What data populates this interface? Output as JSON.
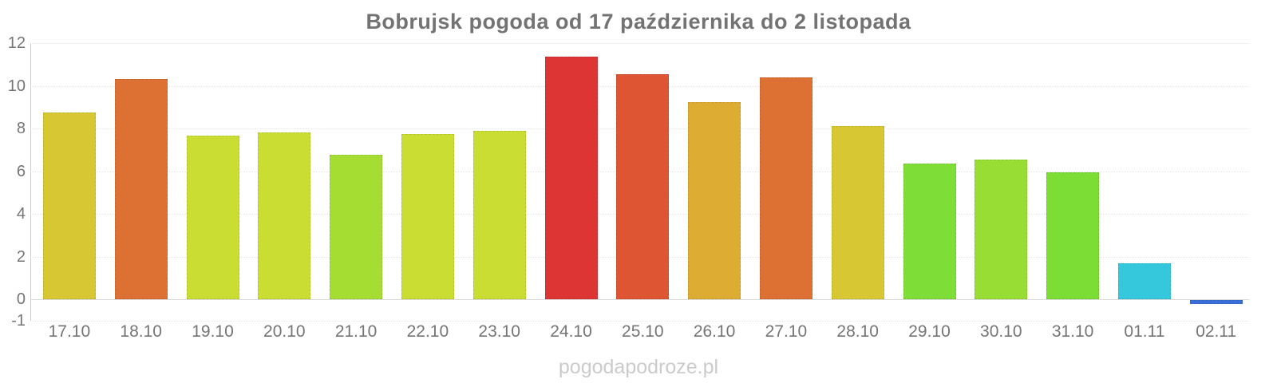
{
  "title": "Bobrujsk pogoda od 17 października do 2 listopada",
  "watermark": "pogodapodroze.pl",
  "chart_data": {
    "type": "bar",
    "title": "Bobrujsk pogoda od 17 października do 2 listopada",
    "categories": [
      "17.10",
      "18.10",
      "19.10",
      "20.10",
      "21.10",
      "22.10",
      "23.10",
      "24.10",
      "25.10",
      "26.10",
      "27.10",
      "28.10",
      "29.10",
      "30.10",
      "31.10",
      "01.11",
      "02.11"
    ],
    "values": [
      8.75,
      10.3,
      7.65,
      7.8,
      6.75,
      7.75,
      7.9,
      11.35,
      10.55,
      9.25,
      10.4,
      8.1,
      6.35,
      6.55,
      5.95,
      1.7,
      -0.2
    ],
    "bar_colors": [
      "#d6c733",
      "#dd7133",
      "#c9dd33",
      "#c9dd33",
      "#a6dd33",
      "#c9dd33",
      "#c9dd33",
      "#dd3434",
      "#dd5533",
      "#ddad33",
      "#dd7133",
      "#d6c733",
      "#7edd36",
      "#98dd34",
      "#7cdd35",
      "#35c8dd",
      "#3a6fd9"
    ],
    "xlabel": "",
    "ylabel": "",
    "yticks": [
      12,
      10,
      8,
      6,
      4,
      2,
      0,
      -1
    ],
    "ylim": [
      -1,
      12
    ],
    "grid": "horizontal-dotted",
    "legend": "none",
    "axis_color": "#cccccc",
    "tick_label_color": "#757575",
    "title_color": "#737373",
    "watermark_color": "#cbcbcb",
    "background_color": "#ffffff"
  }
}
